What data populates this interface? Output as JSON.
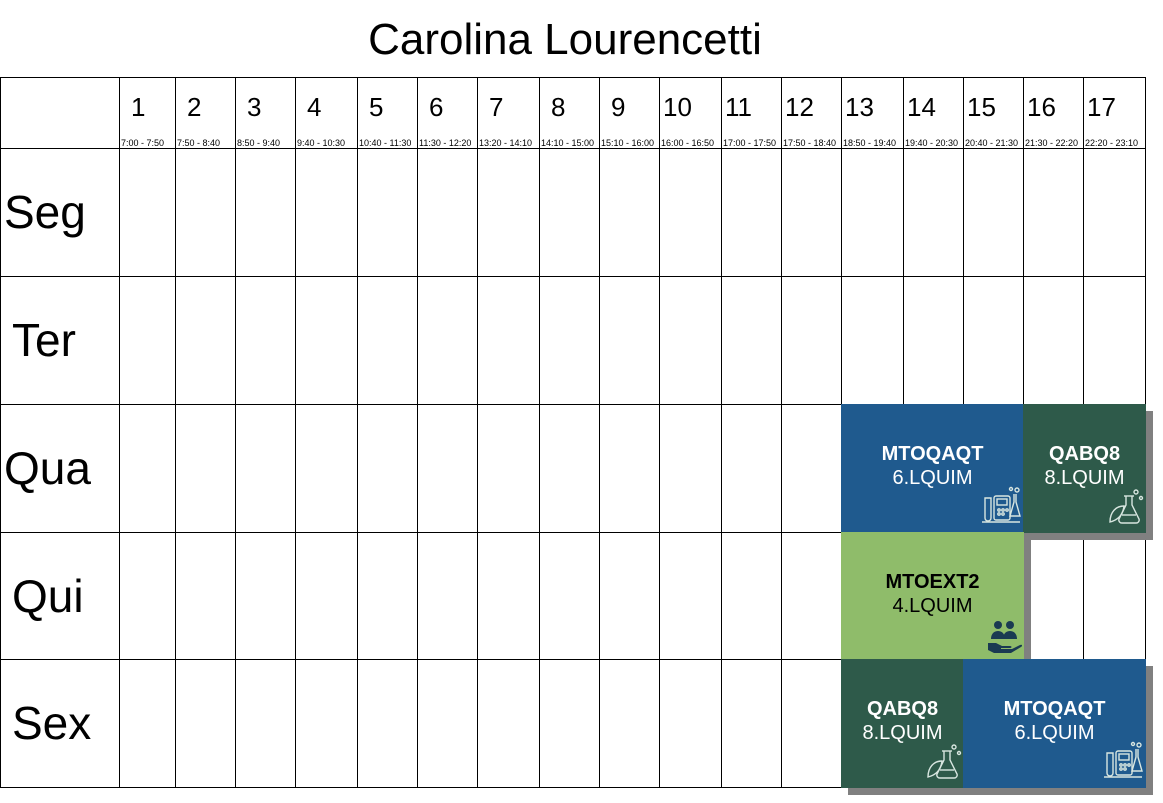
{
  "title": "Carolina Lourencetti",
  "periods": [
    {
      "num": "1",
      "time": "7:00 - 7:50"
    },
    {
      "num": "2",
      "time": "7:50 - 8:40"
    },
    {
      "num": "3",
      "time": "8:50 - 9:40"
    },
    {
      "num": "4",
      "time": "9:40 - 10:30"
    },
    {
      "num": "5",
      "time": "10:40 - 11:30"
    },
    {
      "num": "6",
      "time": "11:30 - 12:20"
    },
    {
      "num": "7",
      "time": "13:20 - 14:10"
    },
    {
      "num": "8",
      "time": "14:10 - 15:00"
    },
    {
      "num": "9",
      "time": "15:10 - 16:00"
    },
    {
      "num": "10",
      "time": "16:00 - 16:50"
    },
    {
      "num": "11",
      "time": "17:00 - 17:50"
    },
    {
      "num": "12",
      "time": "17:50 - 18:40"
    },
    {
      "num": "13",
      "time": "18:50 - 19:40"
    },
    {
      "num": "14",
      "time": "19:40 - 20:30"
    },
    {
      "num": "15",
      "time": "20:40 - 21:30"
    },
    {
      "num": "16",
      "time": "21:30 - 22:20"
    },
    {
      "num": "17",
      "time": "22:20 - 23:10"
    }
  ],
  "days": [
    "Seg",
    "Ter",
    "Qua",
    "Qui",
    "Sex"
  ],
  "classes": [
    {
      "day": "Qua",
      "periods": "13-15",
      "code": "MTOQAQT",
      "room": "6.LQUIM",
      "color": "#1f5a8e",
      "text_color": "#ffffff",
      "icon": "lab-equipment-icon"
    },
    {
      "day": "Qua",
      "periods": "16-17",
      "code": "QABQ8",
      "room": "8.LQUIM",
      "color": "#2e5a4a",
      "text_color": "#ffffff",
      "icon": "eco-flask-icon"
    },
    {
      "day": "Qui",
      "periods": "13-15",
      "code": "MTOEXT2",
      "room": "4.LQUIM",
      "color": "#8fbc6a",
      "text_color": "#000000",
      "icon": "community-hands-icon"
    },
    {
      "day": "Sex",
      "periods": "13-14",
      "code": "QABQ8",
      "room": "8.LQUIM",
      "color": "#2e5a4a",
      "text_color": "#ffffff",
      "icon": "eco-flask-icon"
    },
    {
      "day": "Sex",
      "periods": "15-17",
      "code": "MTOQAQT",
      "room": "6.LQUIM",
      "color": "#1f5a8e",
      "text_color": "#ffffff",
      "icon": "lab-equipment-icon"
    }
  ]
}
